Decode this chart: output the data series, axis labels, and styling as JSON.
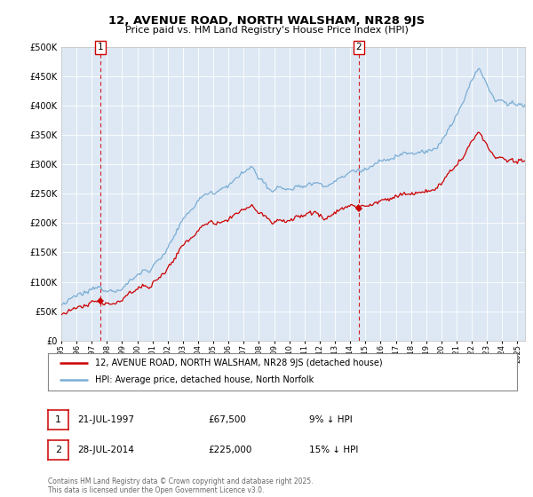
{
  "title": "12, AVENUE ROAD, NORTH WALSHAM, NR28 9JS",
  "subtitle": "Price paid vs. HM Land Registry's House Price Index (HPI)",
  "legend_label_red": "12, AVENUE ROAD, NORTH WALSHAM, NR28 9JS (detached house)",
  "legend_label_blue": "HPI: Average price, detached house, North Norfolk",
  "annotation1_date": "21-JUL-1997",
  "annotation1_price": "£67,500",
  "annotation1_hpi": "9% ↓ HPI",
  "annotation2_date": "28-JUL-2014",
  "annotation2_price": "£225,000",
  "annotation2_hpi": "15% ↓ HPI",
  "footer": "Contains HM Land Registry data © Crown copyright and database right 2025.\nThis data is licensed under the Open Government Licence v3.0.",
  "ylim": [
    0,
    500000
  ],
  "yticks": [
    0,
    50000,
    100000,
    150000,
    200000,
    250000,
    300000,
    350000,
    400000,
    450000,
    500000
  ],
  "sale1_year": 1997.55,
  "sale1_price": 67500,
  "sale2_year": 2014.57,
  "sale2_price": 225000,
  "red_color": "#cc0000",
  "blue_color": "#7aadd4",
  "chart_bg": "#dde8f4",
  "background_color": "#ffffff",
  "grid_color": "#ffffff"
}
